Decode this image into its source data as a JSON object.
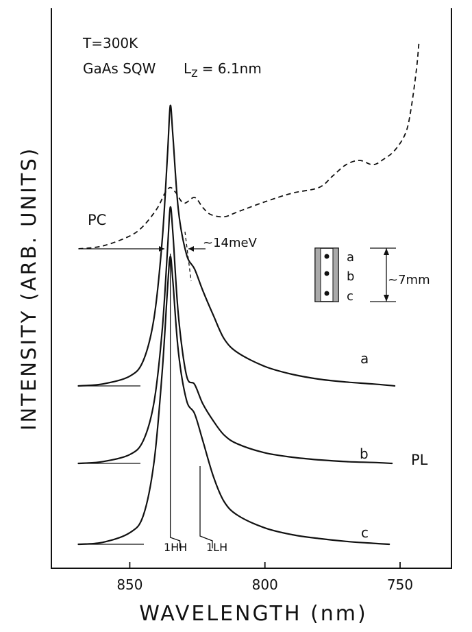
{
  "chart_data": {
    "type": "line",
    "xlabel": "WAVELENGTH (nm)",
    "ylabel": "INTENSITY (ARB. UNITS)",
    "x_reversed": true,
    "xlim": [
      879,
      731
    ],
    "xticks": [
      850,
      800,
      750
    ],
    "annotations": {
      "temperature": "T=300K",
      "sample": "GaAs SQW",
      "lz": "L",
      "lz_sub": "Z",
      "lz_value": "= 6.1nm",
      "pc_label": "PC",
      "pl_label": "PL",
      "fwhm": "~14meV",
      "size": "~7mm",
      "hh": "1HH",
      "lh": "1LH"
    },
    "inset_points": [
      "a",
      "b",
      "c"
    ],
    "hh_wavelength": 835,
    "lh_wavelength": 824,
    "series": [
      {
        "name": "PC",
        "style": "dashed",
        "x": [
          869,
          860,
          850,
          845,
          840,
          837,
          835,
          833,
          830,
          826,
          823,
          820,
          815,
          810,
          800,
          790,
          780,
          775,
          770,
          765,
          760,
          756,
          752,
          748,
          746,
          744,
          743
        ],
        "y": [
          0.0,
          0.04,
          0.18,
          0.32,
          0.56,
          0.78,
          0.86,
          0.79,
          0.64,
          0.72,
          0.58,
          0.48,
          0.45,
          0.52,
          0.66,
          0.78,
          0.86,
          1.02,
          1.18,
          1.24,
          1.18,
          1.26,
          1.38,
          1.62,
          1.95,
          2.5,
          2.9
        ]
      },
      {
        "name": "a",
        "style": "solid",
        "x": [
          869,
          860,
          850,
          845,
          841,
          838,
          836,
          835,
          834,
          832,
          829,
          826,
          823,
          819,
          815,
          810,
          800,
          790,
          780,
          770,
          760,
          752
        ],
        "y": [
          0.0,
          0.02,
          0.1,
          0.26,
          0.7,
          1.5,
          2.4,
          2.88,
          2.55,
          1.8,
          1.35,
          1.2,
          0.98,
          0.72,
          0.48,
          0.34,
          0.2,
          0.12,
          0.07,
          0.04,
          0.02,
          0.0
        ]
      },
      {
        "name": "b",
        "style": "solid",
        "x": [
          869,
          860,
          850,
          845,
          841,
          838,
          836,
          835,
          834,
          832,
          829,
          826,
          823,
          819,
          815,
          810,
          800,
          790,
          780,
          770,
          760,
          753
        ],
        "y": [
          0.0,
          0.02,
          0.1,
          0.26,
          0.7,
          1.52,
          2.46,
          2.92,
          2.6,
          1.68,
          1.0,
          0.9,
          0.68,
          0.48,
          0.32,
          0.22,
          0.12,
          0.07,
          0.04,
          0.02,
          0.01,
          0.0
        ]
      },
      {
        "name": "c",
        "style": "solid",
        "x": [
          869,
          860,
          850,
          845,
          841,
          838,
          836,
          835,
          834,
          832,
          829,
          826,
          823,
          819,
          815,
          810,
          800,
          790,
          780,
          770,
          760,
          754
        ],
        "y": [
          0.0,
          0.02,
          0.12,
          0.3,
          0.86,
          1.8,
          2.68,
          3.0,
          2.72,
          2.0,
          1.5,
          1.36,
          1.08,
          0.7,
          0.44,
          0.3,
          0.17,
          0.1,
          0.06,
          0.03,
          0.01,
          0.0
        ]
      }
    ]
  }
}
